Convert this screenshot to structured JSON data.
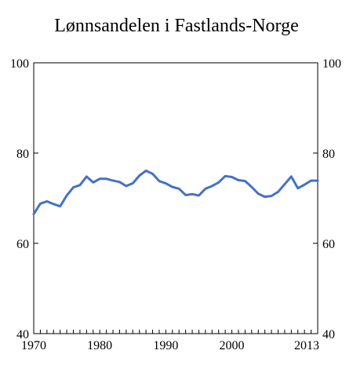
{
  "chart_data": {
    "type": "line",
    "title": "Lønnsandelen i Fastlands-Norge",
    "xlabel": "",
    "ylabel": "",
    "xlim": [
      1970,
      2013
    ],
    "ylim": [
      40,
      100
    ],
    "y_ticks": [
      40,
      60,
      80,
      100
    ],
    "y_tick_labels": [
      "40",
      "60",
      "80",
      "100"
    ],
    "x_ticks": [
      1970,
      1980,
      1990,
      2000,
      2013
    ],
    "x_tick_labels": [
      "1970",
      "1980",
      "1990",
      "2000",
      "2013"
    ],
    "grid": false,
    "legend": "none",
    "series_color": "#4472c4",
    "x": [
      1970,
      1971,
      1972,
      1973,
      1974,
      1975,
      1976,
      1977,
      1978,
      1979,
      1980,
      1981,
      1982,
      1983,
      1984,
      1985,
      1986,
      1987,
      1988,
      1989,
      1990,
      1991,
      1992,
      1993,
      1994,
      1995,
      1996,
      1997,
      1998,
      1999,
      2000,
      2001,
      2002,
      2003,
      2004,
      2005,
      2006,
      2007,
      2008,
      2009,
      2010,
      2011,
      2012,
      2013
    ],
    "series": [
      {
        "values": [
          66.5,
          68.8,
          69.3,
          68.7,
          68.2,
          70.6,
          72.4,
          72.9,
          74.8,
          73.5,
          74.3,
          74.3,
          73.9,
          73.6,
          72.7,
          73.3,
          75.0,
          76.1,
          75.4,
          73.8,
          73.3,
          72.5,
          72.1,
          70.7,
          70.9,
          70.6,
          72.1,
          72.7,
          73.5,
          74.9,
          74.7,
          74.0,
          73.8,
          72.5,
          71.0,
          70.3,
          70.5,
          71.4,
          73.1,
          74.8,
          72.2,
          73.0,
          73.9,
          73.9
        ]
      }
    ]
  }
}
